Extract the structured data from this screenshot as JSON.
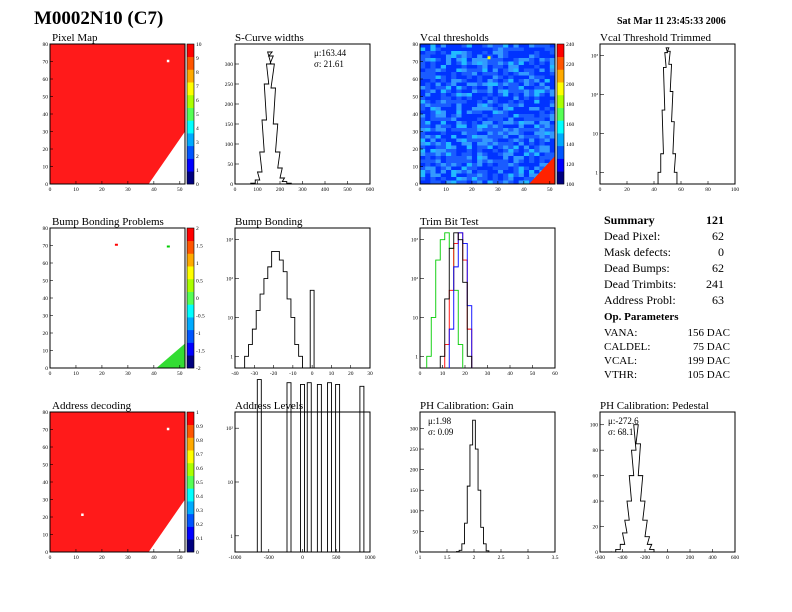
{
  "header": {
    "title": "M0002N10 (C7)",
    "timestamp": "Sat Mar 11 23:45:33 2006"
  },
  "summary": {
    "heading": "Summary",
    "total": "121",
    "rows": [
      {
        "label": "Dead Pixel:",
        "value": "62"
      },
      {
        "label": "Mask defects:",
        "value": "0"
      },
      {
        "label": "Dead Bumps:",
        "value": "62"
      },
      {
        "label": "Dead Trimbits:",
        "value": "241"
      },
      {
        "label": "Address Probl:",
        "value": "63"
      }
    ]
  },
  "op_params": {
    "heading": "Op. Parameters",
    "rows": [
      {
        "label": "VANA:",
        "value": "156 DAC"
      },
      {
        "label": "CALDEL:",
        "value": "75 DAC"
      },
      {
        "label": "VCAL:",
        "value": "199 DAC"
      },
      {
        "label": "VTHR:",
        "value": "105 DAC"
      }
    ]
  },
  "colors": {
    "map_red": "#ff1a1a",
    "hist_line": "#000000"
  },
  "chart_data": [
    {
      "type": "heatmap",
      "title": "Pixel Map",
      "xlim": [
        0,
        52
      ],
      "ylim": [
        0,
        80
      ],
      "x_ticks": [
        "0",
        "10",
        "20",
        "30",
        "40",
        "50"
      ],
      "y_ticks": [
        "0",
        "10",
        "20",
        "30",
        "40",
        "50",
        "60",
        "70",
        "80"
      ],
      "z_ticks": [
        "0",
        "1",
        "2",
        "3",
        "4",
        "5",
        "6",
        "7",
        "8",
        "9",
        "10"
      ],
      "fill_value": 10,
      "dead_corner": "bottom-right",
      "dead_pixels_visible": [
        [
          45,
          71
        ]
      ]
    },
    {
      "type": "histogram",
      "title": "S-Curve widths",
      "xlim": [
        0,
        600
      ],
      "ylim": [
        0,
        350
      ],
      "log_y": false,
      "x_ticks": [
        "0",
        "100",
        "200",
        "300",
        "400",
        "500",
        "600"
      ],
      "y_ticks": [
        "0",
        "50",
        "100",
        "150",
        "200",
        "250",
        "300"
      ],
      "stats": [
        "μ:163.44",
        "σ: 21.61"
      ],
      "x": [
        60,
        80,
        100,
        110,
        120,
        130,
        140,
        150,
        155,
        160,
        165,
        170,
        180,
        190,
        200,
        210,
        220,
        240,
        260
      ],
      "values": [
        0,
        2,
        10,
        30,
        80,
        160,
        250,
        300,
        330,
        320,
        300,
        240,
        150,
        80,
        40,
        15,
        6,
        2,
        0
      ]
    },
    {
      "type": "heatmap",
      "title": "Vcal thresholds",
      "xlim": [
        0,
        52
      ],
      "ylim": [
        0,
        80
      ],
      "x_ticks": [
        "0",
        "10",
        "20",
        "30",
        "40",
        "50"
      ],
      "y_ticks": [
        "0",
        "10",
        "20",
        "30",
        "40",
        "50",
        "60",
        "70",
        "80"
      ],
      "z_ticks": [
        "100",
        "120",
        "140",
        "160",
        "180",
        "200",
        "220",
        "240"
      ],
      "typical_value": 130,
      "edge_value": 240
    },
    {
      "type": "histogram",
      "title": "Vcal Threshold Trimmed",
      "xlim": [
        0,
        100
      ],
      "log_y": true,
      "x_ticks": [
        "0",
        "20",
        "40",
        "60",
        "80",
        "100"
      ],
      "y_ticks": [
        "1",
        "10",
        "10²",
        "10³"
      ],
      "x": [
        44,
        46,
        47,
        48,
        49,
        50,
        51,
        52,
        53,
        54,
        55,
        56,
        58
      ],
      "values": [
        1,
        3,
        40,
        500,
        1200,
        1600,
        1300,
        600,
        120,
        20,
        3,
        1,
        0
      ]
    },
    {
      "type": "heatmap",
      "title": "Bump Bonding Problems",
      "xlim": [
        0,
        52
      ],
      "ylim": [
        0,
        80
      ],
      "x_ticks": [
        "0",
        "10",
        "20",
        "30",
        "40",
        "50"
      ],
      "y_ticks": [
        "0",
        "10",
        "20",
        "30",
        "40",
        "50",
        "60",
        "70",
        "80"
      ],
      "z_ticks": [
        "-2",
        "-1.5",
        "-1",
        "-0.5",
        "0",
        "0.5",
        "1",
        "1.5",
        "2"
      ],
      "marks": [
        [
          25,
          71,
          "red"
        ],
        [
          45,
          70,
          "green"
        ]
      ]
    },
    {
      "type": "histogram",
      "title": "Bump Bonding",
      "xlim": [
        -40,
        30
      ],
      "log_y": true,
      "x_ticks": [
        "-40",
        "-30",
        "-20",
        "-10",
        "0",
        "10",
        "20",
        "30"
      ],
      "y_ticks": [
        "1",
        "10",
        "10²",
        "10³"
      ],
      "x": [
        -34,
        -32,
        -30,
        -28,
        -26,
        -24,
        -22,
        -20,
        -18,
        -16,
        -14,
        -12,
        -10,
        -8,
        -6,
        -4,
        -2,
        0
      ],
      "values": [
        1,
        2,
        5,
        15,
        40,
        100,
        200,
        500,
        500,
        300,
        150,
        30,
        10,
        2,
        1,
        0,
        0,
        50
      ]
    },
    {
      "type": "histogram",
      "title": "Trim Bit Test",
      "xlim": [
        0,
        60
      ],
      "log_y": true,
      "x_ticks": [
        "0",
        "10",
        "20",
        "30",
        "40",
        "50",
        "60"
      ],
      "y_ticks": [
        "1",
        "10",
        "10²",
        "10³"
      ],
      "series": [
        {
          "color": "#00cc00",
          "x": [
            4,
            6,
            8,
            10,
            12,
            14,
            16,
            18
          ],
          "values": [
            1,
            10,
            300,
            1000,
            1500,
            600,
            50,
            2
          ]
        },
        {
          "color": "#ff0000",
          "x": [
            12,
            14,
            16,
            18,
            20,
            22
          ],
          "values": [
            2,
            50,
            800,
            1500,
            300,
            5
          ]
        },
        {
          "color": "#0000ff",
          "x": [
            14,
            16,
            18,
            20,
            22
          ],
          "values": [
            5,
            200,
            1500,
            800,
            20
          ]
        },
        {
          "color": "#000000",
          "x": [
            10,
            12,
            14,
            16,
            18,
            20,
            22
          ],
          "values": [
            1,
            30,
            600,
            1500,
            1000,
            80,
            1
          ]
        }
      ]
    },
    {
      "type": "heatmap",
      "title": "Address decoding",
      "xlim": [
        0,
        52
      ],
      "ylim": [
        0,
        80
      ],
      "x_ticks": [
        "0",
        "10",
        "20",
        "30",
        "40",
        "50"
      ],
      "y_ticks": [
        "0",
        "10",
        "20",
        "30",
        "40",
        "50",
        "60",
        "70",
        "80"
      ],
      "z_ticks": [
        "0",
        "0.1",
        "0.2",
        "0.3",
        "0.4",
        "0.5",
        "0.6",
        "0.7",
        "0.8",
        "0.9",
        "1"
      ],
      "fill_value": 1,
      "dead_corner": "bottom-right",
      "dead_pixels_visible": [
        [
          45,
          71
        ],
        [
          12,
          22
        ]
      ]
    },
    {
      "type": "histogram",
      "title": "Address Levels",
      "xlim": [
        -1000,
        1000
      ],
      "log_y": true,
      "x_ticks": [
        "-1000",
        "-500",
        "0",
        "500",
        "1000"
      ],
      "y_ticks": [
        "1",
        "10",
        "10²"
      ],
      "x": [
        -640,
        -200,
        0,
        100,
        250,
        400,
        520,
        880
      ],
      "values": [
        800,
        700,
        650,
        700,
        650,
        700,
        650,
        600
      ]
    },
    {
      "type": "histogram",
      "title": "PH Calibration: Gain",
      "xlim": [
        1,
        3.5
      ],
      "ylim": [
        0,
        340
      ],
      "log_y": false,
      "x_ticks": [
        "1",
        "1.5",
        "2",
        "2.5",
        "3",
        "3.5"
      ],
      "y_ticks": [
        "0",
        "50",
        "100",
        "150",
        "200",
        "250",
        "300"
      ],
      "stats": [
        "μ:1.98",
        "σ: 0.09"
      ],
      "x": [
        1.7,
        1.75,
        1.8,
        1.85,
        1.9,
        1.95,
        2.0,
        2.05,
        2.1,
        2.15,
        2.2,
        2.25,
        2.3
      ],
      "values": [
        1,
        4,
        20,
        70,
        160,
        260,
        320,
        250,
        150,
        60,
        20,
        3,
        0
      ]
    },
    {
      "type": "histogram",
      "title": "PH Calibration: Pedestal",
      "xlim": [
        -600,
        600
      ],
      "ylim": [
        0,
        110
      ],
      "log_y": false,
      "x_ticks": [
        "-600",
        "-400",
        "-200",
        "0",
        "200",
        "400",
        "600"
      ],
      "y_ticks": [
        "0",
        "20",
        "40",
        "60",
        "80",
        "100"
      ],
      "stats": [
        "μ:-272.6",
        "σ: 68.1"
      ],
      "x": [
        -480,
        -440,
        -400,
        -380,
        -360,
        -340,
        -320,
        -300,
        -280,
        -260,
        -240,
        -220,
        -200,
        -180,
        -160,
        -140,
        -100
      ],
      "values": [
        0,
        2,
        6,
        15,
        25,
        40,
        60,
        80,
        100,
        85,
        60,
        40,
        25,
        12,
        6,
        2,
        0
      ]
    }
  ]
}
